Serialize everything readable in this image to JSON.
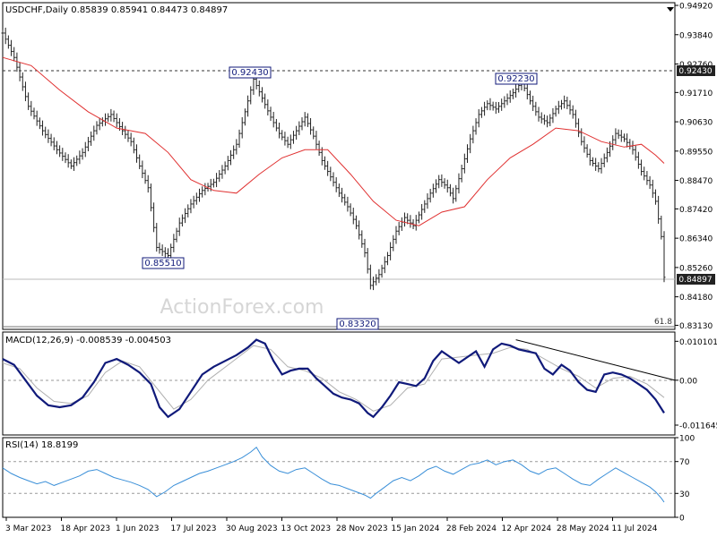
{
  "colors": {
    "price_bars": "#222222",
    "moving_average": "#e03030",
    "macd_line": "#101a7a",
    "macd_signal": "#b0b0b0",
    "rsi_line": "#3a8fd8",
    "annotation_box": "#101a7a",
    "current_price_badge": "#222222"
  },
  "watermark": "ActionForex.com",
  "chart_data": [
    {
      "type": "candlestick",
      "title": "USDCHF,Daily  0.85839 0.85941 0.84473 0.84897",
      "ylim": [
        0.8298,
        0.9502
      ],
      "y_ticks": [
        "0.94920",
        "0.93840",
        "0.92760",
        "0.91710",
        "0.90630",
        "0.89550",
        "0.88470",
        "0.87420",
        "0.86340",
        "0.85260",
        "0.84180",
        "0.83130"
      ],
      "last_price": "0.84897",
      "horizontal_line_label": "0.92430",
      "fib_label": "61.8",
      "annotations": [
        "0.92430",
        "0.85510",
        "0.83320",
        "0.92230"
      ],
      "close_path": [
        [
          0,
          0.939
        ],
        [
          4,
          0.93
        ],
        [
          9,
          0.912
        ],
        [
          14,
          0.903
        ],
        [
          19,
          0.896
        ],
        [
          24,
          0.89
        ],
        [
          28,
          0.895
        ],
        [
          33,
          0.905
        ],
        [
          38,
          0.909
        ],
        [
          42,
          0.903
        ],
        [
          45,
          0.899
        ],
        [
          48,
          0.89
        ],
        [
          51,
          0.882
        ],
        [
          54,
          0.86
        ],
        [
          58,
          0.857
        ],
        [
          62,
          0.869
        ],
        [
          66,
          0.876
        ],
        [
          70,
          0.881
        ],
        [
          74,
          0.884
        ],
        [
          78,
          0.89
        ],
        [
          82,
          0.898
        ],
        [
          85,
          0.91
        ],
        [
          88,
          0.922
        ],
        [
          91,
          0.915
        ],
        [
          94,
          0.908
        ],
        [
          97,
          0.902
        ],
        [
          100,
          0.898
        ],
        [
          103,
          0.903
        ],
        [
          106,
          0.908
        ],
        [
          109,
          0.901
        ],
        [
          112,
          0.892
        ],
        [
          115,
          0.886
        ],
        [
          118,
          0.88
        ],
        [
          121,
          0.875
        ],
        [
          124,
          0.868
        ],
        [
          127,
          0.858
        ],
        [
          129,
          0.846
        ],
        [
          132,
          0.85
        ],
        [
          135,
          0.857
        ],
        [
          138,
          0.866
        ],
        [
          141,
          0.871
        ],
        [
          144,
          0.868
        ],
        [
          147,
          0.874
        ],
        [
          150,
          0.88
        ],
        [
          153,
          0.885
        ],
        [
          156,
          0.882
        ],
        [
          158,
          0.878
        ],
        [
          161,
          0.889
        ],
        [
          164,
          0.9
        ],
        [
          167,
          0.909
        ],
        [
          170,
          0.913
        ],
        [
          173,
          0.911
        ],
        [
          176,
          0.914
        ],
        [
          179,
          0.917
        ],
        [
          182,
          0.921
        ],
        [
          185,
          0.914
        ],
        [
          188,
          0.908
        ],
        [
          191,
          0.906
        ],
        [
          194,
          0.911
        ],
        [
          197,
          0.914
        ],
        [
          200,
          0.909
        ],
        [
          203,
          0.899
        ],
        [
          206,
          0.892
        ],
        [
          209,
          0.889
        ],
        [
          212,
          0.895
        ],
        [
          215,
          0.902
        ],
        [
          218,
          0.9
        ],
        [
          221,
          0.896
        ],
        [
          224,
          0.888
        ],
        [
          227,
          0.883
        ],
        [
          229,
          0.877
        ],
        [
          231,
          0.864
        ],
        [
          232,
          0.849
        ]
      ],
      "moving_average_path": [
        [
          0,
          0.93
        ],
        [
          10,
          0.927
        ],
        [
          20,
          0.918
        ],
        [
          30,
          0.91
        ],
        [
          40,
          0.904
        ],
        [
          50,
          0.902
        ],
        [
          58,
          0.895
        ],
        [
          66,
          0.885
        ],
        [
          74,
          0.881
        ],
        [
          82,
          0.88
        ],
        [
          90,
          0.887
        ],
        [
          98,
          0.893
        ],
        [
          106,
          0.896
        ],
        [
          114,
          0.896
        ],
        [
          122,
          0.887
        ],
        [
          130,
          0.877
        ],
        [
          138,
          0.87
        ],
        [
          146,
          0.868
        ],
        [
          154,
          0.873
        ],
        [
          162,
          0.875
        ],
        [
          170,
          0.885
        ],
        [
          178,
          0.893
        ],
        [
          186,
          0.898
        ],
        [
          194,
          0.904
        ],
        [
          202,
          0.903
        ],
        [
          210,
          0.899
        ],
        [
          218,
          0.897
        ],
        [
          224,
          0.898
        ],
        [
          229,
          0.894
        ],
        [
          232,
          0.891
        ]
      ],
      "x_labels": [
        "3 Mar 2023",
        "18 Apr 2023",
        "1 Jun 2023",
        "17 Jul 2023",
        "30 Aug 2023",
        "13 Oct 2023",
        "28 Nov 2023",
        "15 Jan 2024",
        "28 Feb 2024",
        "12 Apr 2024",
        "28 May 2024",
        "11 Jul 2024"
      ]
    },
    {
      "type": "line",
      "title": "MACD(12,26,9) -0.008539 -0.004503",
      "ylim": [
        -0.0142,
        0.0125
      ],
      "y_ticks": [
        "0.010101",
        "0.00",
        "-0.011645"
      ],
      "macd_path": [
        [
          0,
          0.0055
        ],
        [
          4,
          0.004
        ],
        [
          8,
          0.0
        ],
        [
          12,
          -0.004
        ],
        [
          16,
          -0.0065
        ],
        [
          20,
          -0.007
        ],
        [
          24,
          -0.0065
        ],
        [
          28,
          -0.0045
        ],
        [
          32,
          -0.0005
        ],
        [
          36,
          0.0045
        ],
        [
          40,
          0.0055
        ],
        [
          44,
          0.004
        ],
        [
          48,
          0.002
        ],
        [
          52,
          -0.001
        ],
        [
          55,
          -0.007
        ],
        [
          58,
          -0.0095
        ],
        [
          62,
          -0.0075
        ],
        [
          66,
          -0.003
        ],
        [
          70,
          0.0015
        ],
        [
          74,
          0.0035
        ],
        [
          78,
          0.005
        ],
        [
          82,
          0.0065
        ],
        [
          86,
          0.0085
        ],
        [
          89,
          0.0105
        ],
        [
          92,
          0.0095
        ],
        [
          95,
          0.005
        ],
        [
          98,
          0.0015
        ],
        [
          101,
          0.0025
        ],
        [
          104,
          0.003
        ],
        [
          107,
          0.003
        ],
        [
          110,
          0.0005
        ],
        [
          113,
          -0.0015
        ],
        [
          116,
          -0.0035
        ],
        [
          119,
          -0.0045
        ],
        [
          122,
          -0.005
        ],
        [
          125,
          -0.006
        ],
        [
          128,
          -0.0085
        ],
        [
          130,
          -0.0095
        ],
        [
          133,
          -0.007
        ],
        [
          136,
          -0.004
        ],
        [
          139,
          -0.0005
        ],
        [
          142,
          -0.001
        ],
        [
          145,
          -0.0015
        ],
        [
          148,
          0.0005
        ],
        [
          151,
          0.005
        ],
        [
          154,
          0.0075
        ],
        [
          157,
          0.006
        ],
        [
          160,
          0.0045
        ],
        [
          163,
          0.006
        ],
        [
          166,
          0.0075
        ],
        [
          169,
          0.0035
        ],
        [
          172,
          0.008
        ],
        [
          175,
          0.0095
        ],
        [
          178,
          0.009
        ],
        [
          181,
          0.008
        ],
        [
          184,
          0.0075
        ],
        [
          187,
          0.007
        ],
        [
          190,
          0.003
        ],
        [
          193,
          0.0015
        ],
        [
          196,
          0.004
        ],
        [
          199,
          0.0025
        ],
        [
          202,
          -0.0005
        ],
        [
          205,
          -0.0025
        ],
        [
          208,
          -0.003
        ],
        [
          211,
          0.0015
        ],
        [
          214,
          0.002
        ],
        [
          217,
          0.0015
        ],
        [
          220,
          0.0005
        ],
        [
          223,
          -0.001
        ],
        [
          226,
          -0.0025
        ],
        [
          229,
          -0.005
        ],
        [
          232,
          -0.0085
        ]
      ],
      "signal_path": [
        [
          0,
          0.0045
        ],
        [
          6,
          0.003
        ],
        [
          12,
          -0.002
        ],
        [
          18,
          -0.0055
        ],
        [
          24,
          -0.006
        ],
        [
          30,
          -0.004
        ],
        [
          36,
          0.002
        ],
        [
          42,
          0.005
        ],
        [
          48,
          0.0035
        ],
        [
          54,
          -0.002
        ],
        [
          60,
          -0.0075
        ],
        [
          66,
          -0.005
        ],
        [
          72,
          0.0
        ],
        [
          80,
          0.0045
        ],
        [
          88,
          0.009
        ],
        [
          94,
          0.008
        ],
        [
          100,
          0.0035
        ],
        [
          106,
          0.0025
        ],
        [
          112,
          0.0005
        ],
        [
          118,
          -0.003
        ],
        [
          124,
          -0.005
        ],
        [
          130,
          -0.008
        ],
        [
          136,
          -0.0065
        ],
        [
          142,
          -0.002
        ],
        [
          148,
          -0.001
        ],
        [
          154,
          0.0055
        ],
        [
          160,
          0.006
        ],
        [
          166,
          0.0065
        ],
        [
          172,
          0.007
        ],
        [
          178,
          0.0085
        ],
        [
          184,
          0.008
        ],
        [
          190,
          0.0055
        ],
        [
          196,
          0.003
        ],
        [
          202,
          0.001
        ],
        [
          208,
          -0.002
        ],
        [
          214,
          0.0005
        ],
        [
          220,
          0.001
        ],
        [
          226,
          -0.001
        ],
        [
          232,
          -0.0045
        ]
      ],
      "trendline": [
        [
          180,
          0.0105
        ],
        [
          240,
          0.0
        ]
      ]
    },
    {
      "type": "line",
      "title": "RSI(14) 18.8199",
      "ylim": [
        0,
        100
      ],
      "y_ticks": [
        "100",
        "70",
        "30",
        "0"
      ],
      "rsi_path": [
        [
          0,
          62
        ],
        [
          3,
          55
        ],
        [
          6,
          50
        ],
        [
          9,
          46
        ],
        [
          12,
          42
        ],
        [
          15,
          45
        ],
        [
          18,
          40
        ],
        [
          21,
          44
        ],
        [
          24,
          48
        ],
        [
          27,
          52
        ],
        [
          30,
          58
        ],
        [
          33,
          60
        ],
        [
          36,
          55
        ],
        [
          39,
          50
        ],
        [
          42,
          47
        ],
        [
          45,
          44
        ],
        [
          48,
          40
        ],
        [
          51,
          35
        ],
        [
          54,
          26
        ],
        [
          57,
          32
        ],
        [
          60,
          40
        ],
        [
          63,
          45
        ],
        [
          66,
          50
        ],
        [
          69,
          55
        ],
        [
          72,
          58
        ],
        [
          75,
          62
        ],
        [
          78,
          66
        ],
        [
          81,
          70
        ],
        [
          84,
          75
        ],
        [
          87,
          82
        ],
        [
          89,
          88
        ],
        [
          91,
          76
        ],
        [
          94,
          65
        ],
        [
          97,
          58
        ],
        [
          100,
          55
        ],
        [
          103,
          60
        ],
        [
          106,
          62
        ],
        [
          109,
          55
        ],
        [
          112,
          48
        ],
        [
          115,
          42
        ],
        [
          118,
          40
        ],
        [
          121,
          36
        ],
        [
          124,
          32
        ],
        [
          127,
          28
        ],
        [
          129,
          24
        ],
        [
          131,
          30
        ],
        [
          134,
          38
        ],
        [
          137,
          46
        ],
        [
          140,
          50
        ],
        [
          143,
          46
        ],
        [
          146,
          52
        ],
        [
          149,
          60
        ],
        [
          152,
          64
        ],
        [
          155,
          58
        ],
        [
          158,
          54
        ],
        [
          161,
          60
        ],
        [
          164,
          66
        ],
        [
          167,
          68
        ],
        [
          170,
          72
        ],
        [
          173,
          66
        ],
        [
          176,
          70
        ],
        [
          179,
          72
        ],
        [
          182,
          66
        ],
        [
          185,
          58
        ],
        [
          188,
          54
        ],
        [
          191,
          60
        ],
        [
          194,
          62
        ],
        [
          197,
          55
        ],
        [
          200,
          48
        ],
        [
          203,
          42
        ],
        [
          206,
          40
        ],
        [
          209,
          48
        ],
        [
          212,
          55
        ],
        [
          215,
          62
        ],
        [
          218,
          56
        ],
        [
          221,
          50
        ],
        [
          224,
          44
        ],
        [
          227,
          38
        ],
        [
          229,
          32
        ],
        [
          231,
          24
        ],
        [
          232,
          19
        ]
      ]
    }
  ]
}
